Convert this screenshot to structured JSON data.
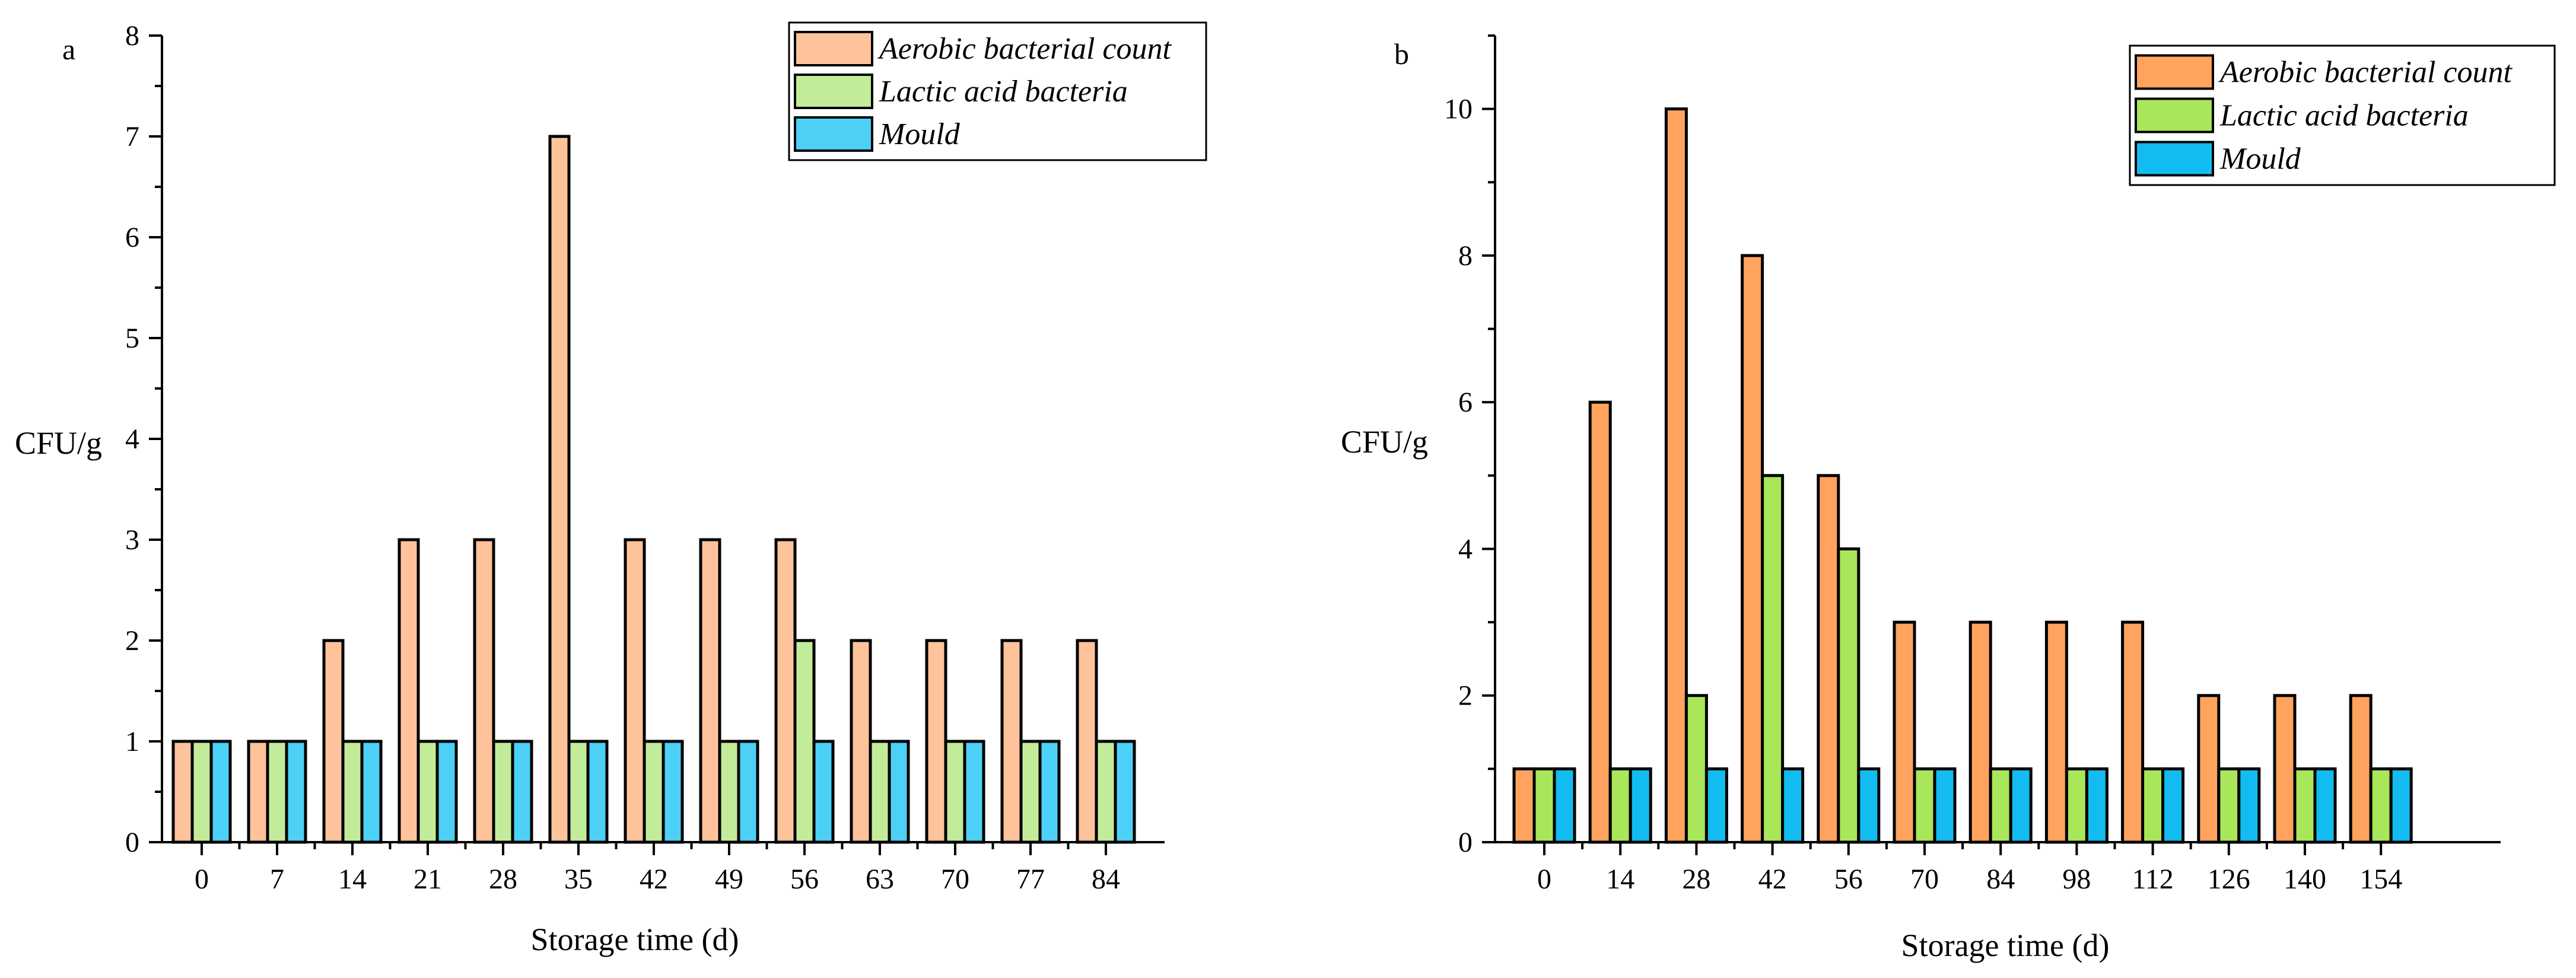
{
  "colors": {
    "a": {
      "aerobic": "#FFC39C",
      "lactic": "#C3EC9A",
      "mould": "#4DD0F6"
    },
    "b": {
      "aerobic": "#FFA35E",
      "lactic": "#A9E65A",
      "mould": "#13BCF0"
    }
  },
  "chart_data": [
    {
      "panel": "a",
      "type": "bar",
      "xlabel": "Storage time (d)",
      "ylabel": "CFU/g",
      "ylim": [
        0,
        8
      ],
      "yticks": [
        "0",
        "1",
        "2",
        "3",
        "4",
        "5",
        "6",
        "7",
        "8"
      ],
      "legend_position": "top-right",
      "categories": [
        "0",
        "7",
        "14",
        "21",
        "28",
        "35",
        "42",
        "49",
        "56",
        "63",
        "70",
        "77",
        "84"
      ],
      "series": [
        {
          "key": "aerobic",
          "name": "Aerobic bacterial count",
          "values": [
            1,
            1,
            2,
            3,
            3,
            7,
            3,
            3,
            3,
            2,
            2,
            2,
            2
          ]
        },
        {
          "key": "lactic",
          "name": "Lactic acid bacteria",
          "values": [
            1,
            1,
            1,
            1,
            1,
            1,
            1,
            1,
            2,
            1,
            1,
            1,
            1
          ]
        },
        {
          "key": "mould",
          "name": "Mould",
          "values": [
            1,
            1,
            1,
            1,
            1,
            1,
            1,
            1,
            1,
            1,
            1,
            1,
            1
          ]
        }
      ]
    },
    {
      "panel": "b",
      "type": "bar",
      "xlabel": "Storage time (d)",
      "ylabel": "CFU/g",
      "ylim": [
        0,
        11
      ],
      "yticks": [
        "0",
        "2",
        "4",
        "6",
        "8",
        "10"
      ],
      "legend_position": "top-right",
      "categories": [
        "0",
        "14",
        "28",
        "42",
        "56",
        "70",
        "84",
        "98",
        "112",
        "126",
        "140",
        "154"
      ],
      "series": [
        {
          "key": "aerobic",
          "name": "Aerobic bacterial count",
          "values": [
            1,
            6,
            10,
            8,
            5,
            3,
            3,
            3,
            3,
            2,
            2,
            2
          ]
        },
        {
          "key": "lactic",
          "name": "Lactic acid bacteria",
          "values": [
            1,
            1,
            2,
            5,
            4,
            1,
            1,
            1,
            1,
            1,
            1,
            1
          ]
        },
        {
          "key": "mould",
          "name": "Mould",
          "values": [
            1,
            1,
            1,
            1,
            1,
            1,
            1,
            1,
            1,
            1,
            1,
            1
          ]
        }
      ]
    }
  ]
}
